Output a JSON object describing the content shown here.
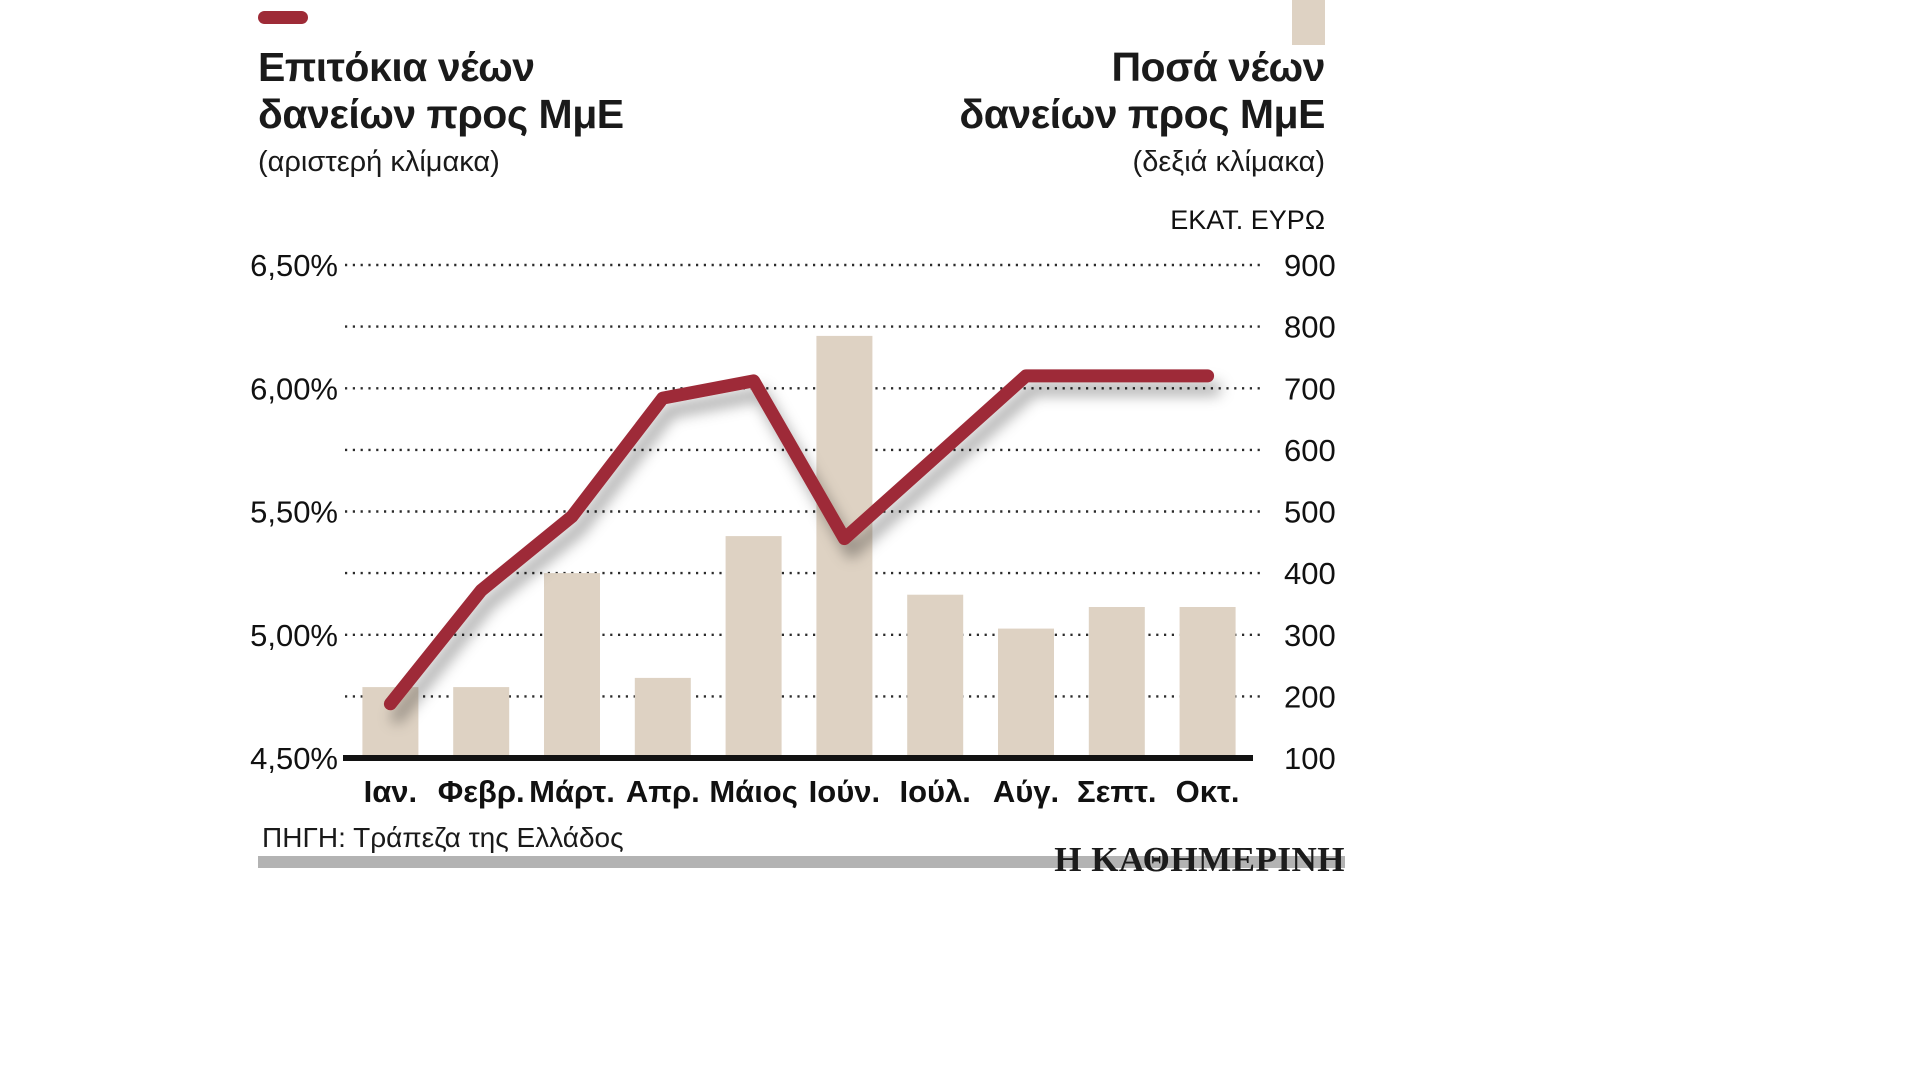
{
  "header": {
    "left": {
      "title_line1": "Επιτόκια νέων",
      "title_line2": "δανείων προς ΜμΕ",
      "subtitle": "(αριστερή κλίμακα)"
    },
    "right": {
      "title_line1": "Ποσά νέων",
      "title_line2": "δανείων προς ΜμΕ",
      "subtitle": "(δεξιά κλίμακα)",
      "unit_label": "ΕΚΑΤ. ΕΥΡΩ"
    }
  },
  "footer": {
    "source": "ΠΗΓΗ: Τράπεζα της Ελλάδος",
    "logo": "Η ΚΑΘΗΜΕΡΙΝΗ"
  },
  "colors": {
    "line": "#9e2b37",
    "bar": "#ded2c3",
    "grid": "#2b2b2b",
    "axis": "#121212",
    "footer_bar": "#b3b3b3"
  },
  "chart_data": {
    "type": "combo: line (left axis) + bar (right axis)",
    "categories": [
      "Ιαν.",
      "Φεβρ.",
      "Μάρτ.",
      "Απρ.",
      "Μάιος",
      "Ιούν.",
      "Ιούλ.",
      "Αύγ.",
      "Σεπτ.",
      "Οκτ."
    ],
    "series": [
      {
        "name": "Επιτόκια νέων δανείων προς ΜμΕ",
        "type": "line",
        "axis": "left",
        "unit": "%",
        "values": [
          4.72,
          5.18,
          5.48,
          5.96,
          6.03,
          5.39,
          5.72,
          6.05,
          6.05,
          6.05
        ]
      },
      {
        "name": "Ποσά νέων δανείων προς ΜμΕ",
        "type": "bar",
        "axis": "right",
        "unit": "εκατ. ευρώ",
        "values": [
          215,
          215,
          400,
          230,
          460,
          785,
          365,
          310,
          345,
          345
        ]
      }
    ],
    "left_axis": {
      "min": 4.5,
      "max": 6.5,
      "tick_labels": [
        "6,50%",
        "6,00%",
        "5,50%",
        "5,00%",
        "4,50%"
      ],
      "gridline_step_pct": 0.25
    },
    "right_axis": {
      "min": 100,
      "max": 900,
      "tick_labels": [
        "900",
        "800",
        "700",
        "600",
        "500",
        "400",
        "300",
        "200",
        "100"
      ],
      "gridline_step": 100
    },
    "grid": "dotted horizontal gridlines, solid bottom axis",
    "legend_position": "color swatches next to the two titles (top-left line, top-right bar)"
  }
}
